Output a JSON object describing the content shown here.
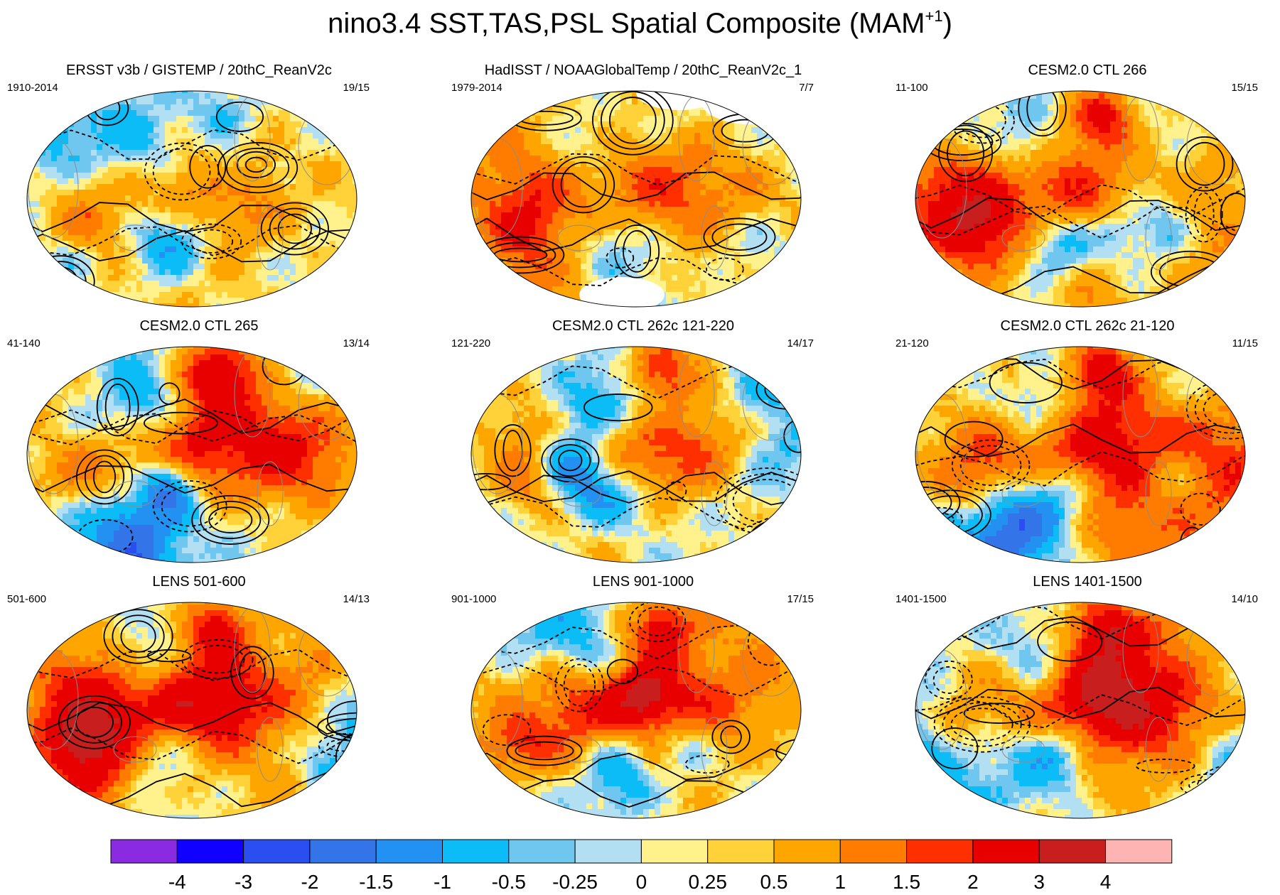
{
  "figure": {
    "title": "nino3.4 SST,TAS,PSL Spatial Composite (MAM",
    "title_superscript": "+1",
    "title_close": ")"
  },
  "chart_data": {
    "type": "map-composite-grid",
    "colorbar": {
      "colors": [
        "#8a2be2",
        "#0f00ff",
        "#2a4ef0",
        "#3374e8",
        "#2291f2",
        "#0cbcf7",
        "#6fc7f0",
        "#b2dff2",
        "#fff28c",
        "#ffd23a",
        "#ffa500",
        "#ff7c00",
        "#ff2f00",
        "#e80000",
        "#c81e1e",
        "#ffb4b4"
      ],
      "tick_labels": [
        "-4",
        "-3",
        "-2",
        "-1.5",
        "-1",
        "-0.5",
        "-0.25",
        "0",
        "0.25",
        "0.5",
        "1",
        "1.5",
        "2",
        "3",
        "4"
      ]
    },
    "panels": [
      {
        "title": "ERSST v3b / GISTEMP / 20thC_ReanV2c",
        "years": "1910-2014",
        "count": "19/15",
        "land_mask": false
      },
      {
        "title": "HadISST / NOAAGlobalTemp / 20thC_ReanV2c_1",
        "years": "1979-2014",
        "count": "7/7",
        "land_mask": true
      },
      {
        "title": "CESM2.0 CTL 266",
        "years": "11-100",
        "count": "15/15",
        "land_mask": false
      },
      {
        "title": "CESM2.0 CTL 265",
        "years": "41-140",
        "count": "13/14",
        "land_mask": false
      },
      {
        "title": "CESM2.0 CTL 262c 121-220",
        "years": "121-220",
        "count": "14/17",
        "land_mask": false
      },
      {
        "title": "CESM2.0 CTL 262c 21-120",
        "years": "21-120",
        "count": "11/15",
        "land_mask": false
      },
      {
        "title": "LENS 501-600",
        "years": "501-600",
        "count": "14/13",
        "land_mask": false
      },
      {
        "title": "LENS 901-1000",
        "years": "901-1000",
        "count": "17/15",
        "land_mask": false
      },
      {
        "title": "LENS 1401-1500",
        "years": "1401-1500",
        "count": "14/10",
        "land_mask": false
      }
    ]
  }
}
